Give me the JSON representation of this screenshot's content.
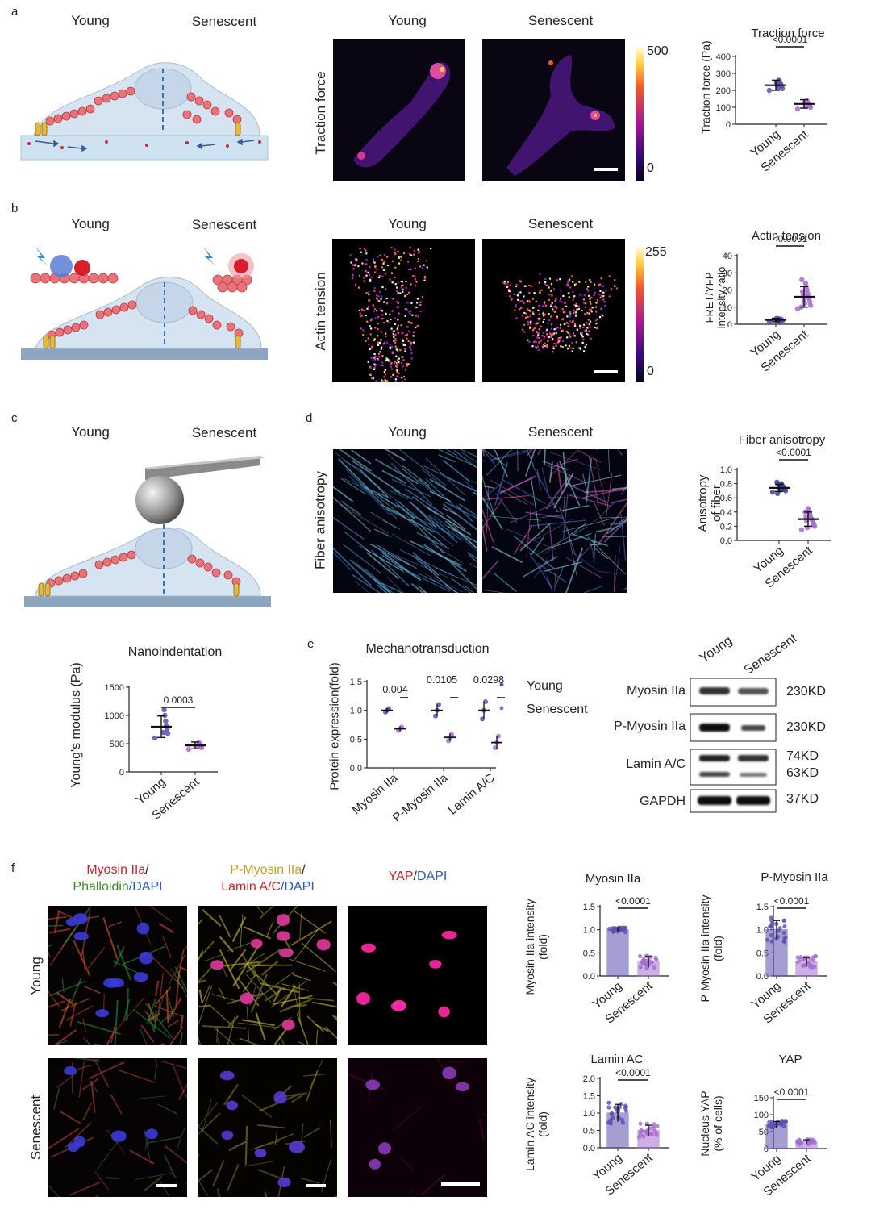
{
  "panels": {
    "a": {
      "letter": "a",
      "cartoon_labels": [
        "Young",
        "Senescent"
      ],
      "image_headers": [
        "Young",
        "Senescent"
      ],
      "row_label": "Traction force",
      "colorbar": {
        "max": "500",
        "min": "0"
      },
      "chart": {
        "title": "Traction force",
        "ylabel": "Traction force (Pa)",
        "ytick_labels": [
          "0",
          "100",
          "200",
          "300",
          "400"
        ],
        "xtick_labels": [
          "Young",
          "Senescent"
        ],
        "pvalue": "<0.0001"
      }
    },
    "b": {
      "letter": "b",
      "cartoon_labels": [
        "Young",
        "Senescent"
      ],
      "image_headers": [
        "Young",
        "Senescent"
      ],
      "row_label": "Actin tension",
      "colorbar": {
        "max": "255",
        "min": "0"
      },
      "chart": {
        "title": "Actin tension",
        "ylabel_line1": "FRET/YFP",
        "ylabel_line2": "intensity ratio",
        "ytick_labels": [
          "0",
          "10",
          "20",
          "30",
          "40"
        ],
        "xtick_labels": [
          "Young",
          "Senescent"
        ],
        "pvalue": "<0.0001"
      }
    },
    "c": {
      "letter": "c",
      "cartoon_labels": [
        "Young",
        "Senescent"
      ],
      "chart": {
        "title": "Nanoindentation",
        "ylabel": "Young's modulus (Pa)",
        "ytick_labels": [
          "0",
          "500",
          "1000",
          "1500"
        ],
        "xtick_labels": [
          "Young",
          "Senescent"
        ],
        "pvalue": "0.0003"
      }
    },
    "d": {
      "letter": "d",
      "image_headers": [
        "Young",
        "Senescent"
      ],
      "row_label": "Fiber anisotropy",
      "chart": {
        "title": "Fiber anisotropy",
        "ylabel_line1": "Anisotropy",
        "ylabel_line2": "of fiber",
        "ytick_labels": [
          "0.0",
          "0.2",
          "0.4",
          "0.6",
          "0.8",
          "1.0"
        ],
        "xtick_labels": [
          "Young",
          "Senescent"
        ],
        "pvalue": "<0.0001"
      }
    },
    "e": {
      "letter": "e",
      "chart": {
        "title": "Mechanotransduction",
        "ylabel": "Protein expression(fold)",
        "ytick_labels": [
          "0.0",
          "0.5",
          "1.0",
          "1.5"
        ],
        "xtick_labels": [
          "Myosin IIa",
          "P-Myosin IIa",
          "Lamin A/C"
        ],
        "pvalues": [
          "0.004",
          "0.0105",
          "0.0298"
        ],
        "legend": [
          "Young",
          "Senescent"
        ]
      },
      "blot": {
        "lane_labels": [
          "Young",
          "Senescent"
        ],
        "rows": [
          {
            "protein": "Myosin IIa",
            "size": "230KD"
          },
          {
            "protein": "P-Myosin IIa",
            "size": "230KD"
          },
          {
            "protein": "Lamin A/C",
            "size": "74KD",
            "size2": "63KD"
          },
          {
            "protein": "GAPDH",
            "size": "37KD"
          }
        ]
      }
    },
    "f": {
      "letter": "f",
      "col1": {
        "a": "Myosin IIa",
        "b": "/",
        "c": "Phalloidin",
        "d": "/DAPI"
      },
      "col2": {
        "a": "P-Myosin IIa",
        "b": "/",
        "c": "Lamin A/C",
        "d": "/DAPI"
      },
      "col3": {
        "a": "YAP",
        "b": "/",
        "c": "DAPI"
      },
      "row_labels": [
        "Young",
        "Senescent"
      ],
      "charts": [
        {
          "title": "Myosin IIa",
          "ylabel_line1": "Myosin IIa intensity",
          "ylabel_line2": "(fold)",
          "ytick_labels": [
            "0.0",
            "0.5",
            "1.0",
            "1.5"
          ],
          "xtick_labels": [
            "Young",
            "Senescent"
          ],
          "pvalue": "<0.0001"
        },
        {
          "title": "P-Myosin IIa",
          "ylabel_line1": "P-Myosin IIa intensity",
          "ylabel_line2": "(fold)",
          "ytick_labels": [
            "0.0",
            "0.5",
            "1.0",
            "1.5"
          ],
          "xtick_labels": [
            "Young",
            "Senescent"
          ],
          "pvalue": "<0.0001"
        },
        {
          "title": "Lamin AC",
          "ylabel_line1": "Lamin AC intensity",
          "ylabel_line2": "(fold)",
          "ytick_labels": [
            "0.0",
            "0.5",
            "1.0",
            "1.5",
            "2.0"
          ],
          "xtick_labels": [
            "Young",
            "Senescent"
          ],
          "pvalue": "<0.0001"
        },
        {
          "title": "YAP",
          "ylabel_line1": "Nucleus YAP",
          "ylabel_line2": "(% of cells)",
          "ytick_labels": [
            "0",
            "50",
            "100",
            "150"
          ],
          "xtick_labels": [
            "Young",
            "Senescent"
          ],
          "pvalue": "<0.0001"
        }
      ]
    }
  },
  "colors": {
    "young": "#5a4fb0",
    "senescent": "#a56dd0",
    "cell": "#d6e3f0",
    "actin": "#e8747a"
  },
  "chart_data": [
    {
      "type": "scatter",
      "id": "traction",
      "categories": [
        "Young",
        "Senescent"
      ],
      "means": [
        230,
        120
      ],
      "sd": [
        30,
        25
      ],
      "ylim": [
        0,
        400
      ],
      "colors": [
        "#5a4fb0",
        "#a56dd0"
      ],
      "points": [
        [
          200,
          210,
          225,
          235,
          240,
          255,
          260,
          215,
          230,
          245
        ],
        [
          90,
          100,
          110,
          115,
          120,
          125,
          140,
          135,
          105,
          130
        ]
      ]
    },
    {
      "type": "scatter",
      "id": "actin",
      "categories": [
        "Young",
        "Senescent"
      ],
      "means": [
        2.5,
        16
      ],
      "sd": [
        1,
        6
      ],
      "ylim": [
        0,
        40
      ],
      "colors": [
        "#5a4fb0",
        "#a56dd0"
      ],
      "points": [
        [
          1.5,
          2,
          2.5,
          3,
          1.8,
          2.2,
          3.2,
          2.7,
          1.2,
          3.5
        ],
        [
          9,
          11,
          13,
          15,
          16,
          18,
          20,
          22,
          24,
          12,
          14,
          17,
          19,
          26,
          10
        ]
      ]
    },
    {
      "type": "scatter",
      "id": "nano",
      "categories": [
        "Young",
        "Senescent"
      ],
      "means": [
        800,
        470
      ],
      "sd": [
        190,
        60
      ],
      "ylim": [
        0,
        1500
      ],
      "colors": [
        "#5a4fb0",
        "#a56dd0"
      ],
      "points": [
        [
          600,
          680,
          750,
          820,
          900,
          1000,
          1100,
          700
        ],
        [
          400,
          430,
          460,
          480,
          500,
          520,
          450
        ]
      ]
    },
    {
      "type": "scatter",
      "id": "aniso",
      "categories": [
        "Young",
        "Senescent"
      ],
      "means": [
        0.74,
        0.3
      ],
      "sd": [
        0.05,
        0.1
      ],
      "ylim": [
        0,
        1.0
      ],
      "colors": [
        "#3b3f8f",
        "#a56dd0"
      ],
      "points": [
        [
          0.68,
          0.7,
          0.72,
          0.74,
          0.75,
          0.76,
          0.78,
          0.8,
          0.71,
          0.73,
          0.77,
          0.79,
          0.66,
          0.82
        ],
        [
          0.15,
          0.2,
          0.22,
          0.25,
          0.28,
          0.3,
          0.32,
          0.35,
          0.38,
          0.42,
          0.45,
          0.18,
          0.27,
          0.33,
          0.4
        ]
      ]
    },
    {
      "type": "scatter",
      "id": "mech",
      "categories": [
        "Myosin IIa",
        "P-Myosin IIa",
        "Lamin A/C"
      ],
      "ylim": [
        0,
        1.5
      ],
      "series": [
        {
          "name": "Young",
          "means": [
            1.0,
            1.0,
            1.0
          ],
          "sd": [
            0.04,
            0.1,
            0.15
          ],
          "points": [
            [
              0.97,
              1.0,
              1.03
            ],
            [
              0.9,
              1.0,
              1.1
            ],
            [
              0.85,
              1.0,
              1.15
            ]
          ]
        },
        {
          "name": "Senescent",
          "means": [
            0.68,
            0.53,
            0.44
          ],
          "sd": [
            0.04,
            0.07,
            0.12
          ],
          "points": [
            [
              0.65,
              0.68,
              0.71
            ],
            [
              0.47,
              0.53,
              0.58
            ],
            [
              0.35,
              0.44,
              0.55
            ]
          ]
        }
      ]
    },
    {
      "type": "bar",
      "id": "fmyo",
      "categories": [
        "Young",
        "Senescent"
      ],
      "values": [
        1.0,
        0.3
      ],
      "sd": [
        0.04,
        0.12
      ],
      "ylim": [
        0,
        1.5
      ],
      "colors": [
        "#5a4fb0",
        "#a56dd0"
      ]
    },
    {
      "type": "bar",
      "id": "fpmyo",
      "categories": [
        "Young",
        "Senescent"
      ],
      "values": [
        1.0,
        0.3
      ],
      "sd": [
        0.2,
        0.1
      ],
      "ylim": [
        0,
        1.5
      ],
      "colors": [
        "#5a4fb0",
        "#a56dd0"
      ]
    },
    {
      "type": "bar",
      "id": "flamin",
      "categories": [
        "Young",
        "Senescent"
      ],
      "values": [
        1.0,
        0.5
      ],
      "sd": [
        0.25,
        0.15
      ],
      "ylim": [
        0,
        2.0
      ],
      "colors": [
        "#5a4fb0",
        "#a56dd0"
      ]
    },
    {
      "type": "bar",
      "id": "fyap",
      "categories": [
        "Young",
        "Senescent"
      ],
      "values": [
        70,
        20
      ],
      "sd": [
        10,
        6
      ],
      "ylim": [
        0,
        150
      ],
      "colors": [
        "#5a4fb0",
        "#a56dd0"
      ]
    }
  ]
}
